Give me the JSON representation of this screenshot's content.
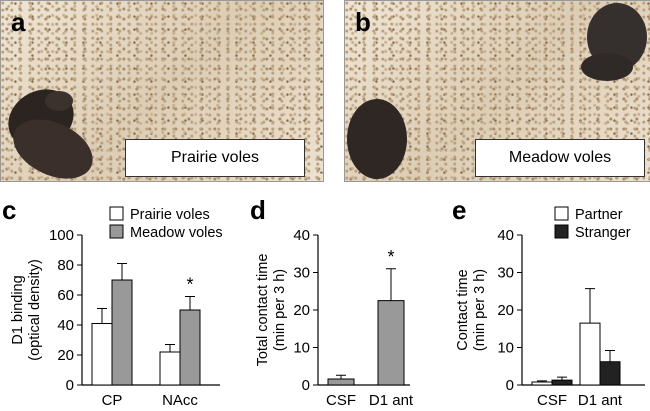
{
  "photos": {
    "a": {
      "letter": "a",
      "label": "Prairie voles"
    },
    "b": {
      "letter": "b",
      "label": "Meadow voles"
    }
  },
  "colors": {
    "white_bar": "#ffffff",
    "gray_bar": "#999999",
    "black_bar": "#222222",
    "axis": "#000000"
  },
  "chart_data": [
    {
      "panel": "c",
      "type": "bar",
      "title": "",
      "ylabel": [
        "D1 binding",
        "(optical density)"
      ],
      "xlabel": "",
      "ylim": [
        0,
        100
      ],
      "yticks": [
        0,
        20,
        40,
        60,
        80,
        100
      ],
      "categories": [
        "CP",
        "NAcc"
      ],
      "series": [
        {
          "name": "Prairie voles",
          "color": "#ffffff",
          "values": [
            41,
            22
          ],
          "errors": [
            10,
            5
          ]
        },
        {
          "name": "Meadow voles",
          "color": "#999999",
          "values": [
            70,
            50
          ],
          "errors": [
            11,
            9
          ]
        }
      ],
      "annotations": [
        {
          "text": "*",
          "category": 1,
          "series": 1
        }
      ],
      "legend": "top"
    },
    {
      "panel": "d",
      "type": "bar",
      "title": "",
      "ylabel": [
        "Total contact time",
        "(min per 3 h)"
      ],
      "xlabel": "",
      "ylim": [
        0,
        40
      ],
      "yticks": [
        0,
        10,
        20,
        30,
        40
      ],
      "categories": [
        "CSF",
        "D1 ant"
      ],
      "series": [
        {
          "color": "#999999",
          "values": [
            1.6,
            22.5
          ],
          "errors": [
            1.0,
            8.5
          ]
        }
      ],
      "annotations": [
        {
          "text": "*",
          "category": 1,
          "series": 0
        }
      ],
      "legend": "none"
    },
    {
      "panel": "e",
      "type": "bar",
      "title": "",
      "ylabel": [
        "Contact time",
        "(min per 3 h)"
      ],
      "xlabel": "",
      "ylim": [
        0,
        40
      ],
      "yticks": [
        0,
        10,
        20,
        30,
        40
      ],
      "categories": [
        "CSF",
        "D1 ant"
      ],
      "series": [
        {
          "name": "Partner",
          "color": "#ffffff",
          "values": [
            0.8,
            16.5
          ],
          "errors": [
            0.3,
            9.2
          ]
        },
        {
          "name": "Stranger",
          "color": "#222222",
          "values": [
            1.3,
            6.2
          ],
          "errors": [
            0.8,
            3.0
          ]
        }
      ],
      "annotations": [],
      "legend": "top-right"
    }
  ]
}
